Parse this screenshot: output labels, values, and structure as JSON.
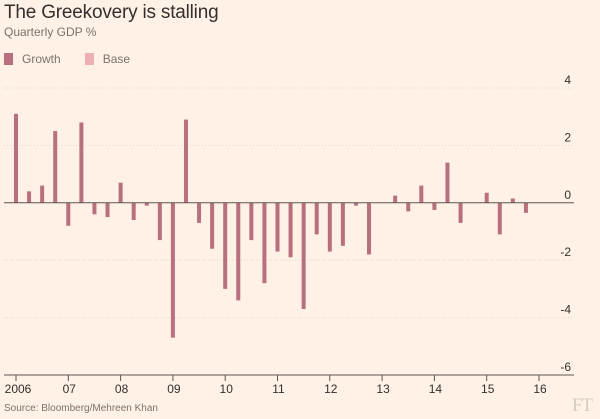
{
  "title": "The Greekovery is stalling",
  "subtitle": "Quarterly GDP %",
  "source": "Source: Bloomberg/Mehreen Khan",
  "logo": "FT",
  "colors": {
    "background": "#fff1e5",
    "growth": "#b8707f",
    "base": "#ecb0b4",
    "grid": "#e3d6c9",
    "zero": "#5c5652",
    "text": "#33302e"
  },
  "chart_data": {
    "type": "bar",
    "title": "The Greekovery is stalling",
    "subtitle": "Quarterly GDP %",
    "ylim": [
      -6,
      4
    ],
    "yticks": [
      4,
      2,
      0,
      -2,
      -4,
      -6
    ],
    "ytick_labels": [
      "4",
      "2",
      "0",
      "-2",
      "-4",
      "-6"
    ],
    "grid": true,
    "legend": "top-left",
    "x_start_year": 2006,
    "x_labels": [
      "2006",
      "07",
      "08",
      "09",
      "10",
      "11",
      "12",
      "13",
      "14",
      "15",
      "16"
    ],
    "series": [
      {
        "name": "Growth",
        "color": "#b8707f",
        "values": [
          3.1,
          0.4,
          0.6,
          2.5,
          -0.8,
          2.8,
          -0.4,
          -0.5,
          0.7,
          -0.6,
          -0.1,
          -1.3,
          -4.7,
          2.9,
          -0.7,
          -1.6,
          -3.0,
          -3.4,
          -1.3,
          -2.8,
          -1.7,
          -1.9,
          -3.7,
          -1.1,
          -1.7,
          -1.5,
          -0.1,
          -1.8,
          0.0,
          0.25,
          -0.3,
          0.6,
          -0.25,
          1.4,
          -0.7,
          0.0,
          0.35,
          -1.1,
          0.15,
          -0.35
        ]
      },
      {
        "name": "Base",
        "color": "#ecb0b4",
        "values": []
      }
    ]
  }
}
